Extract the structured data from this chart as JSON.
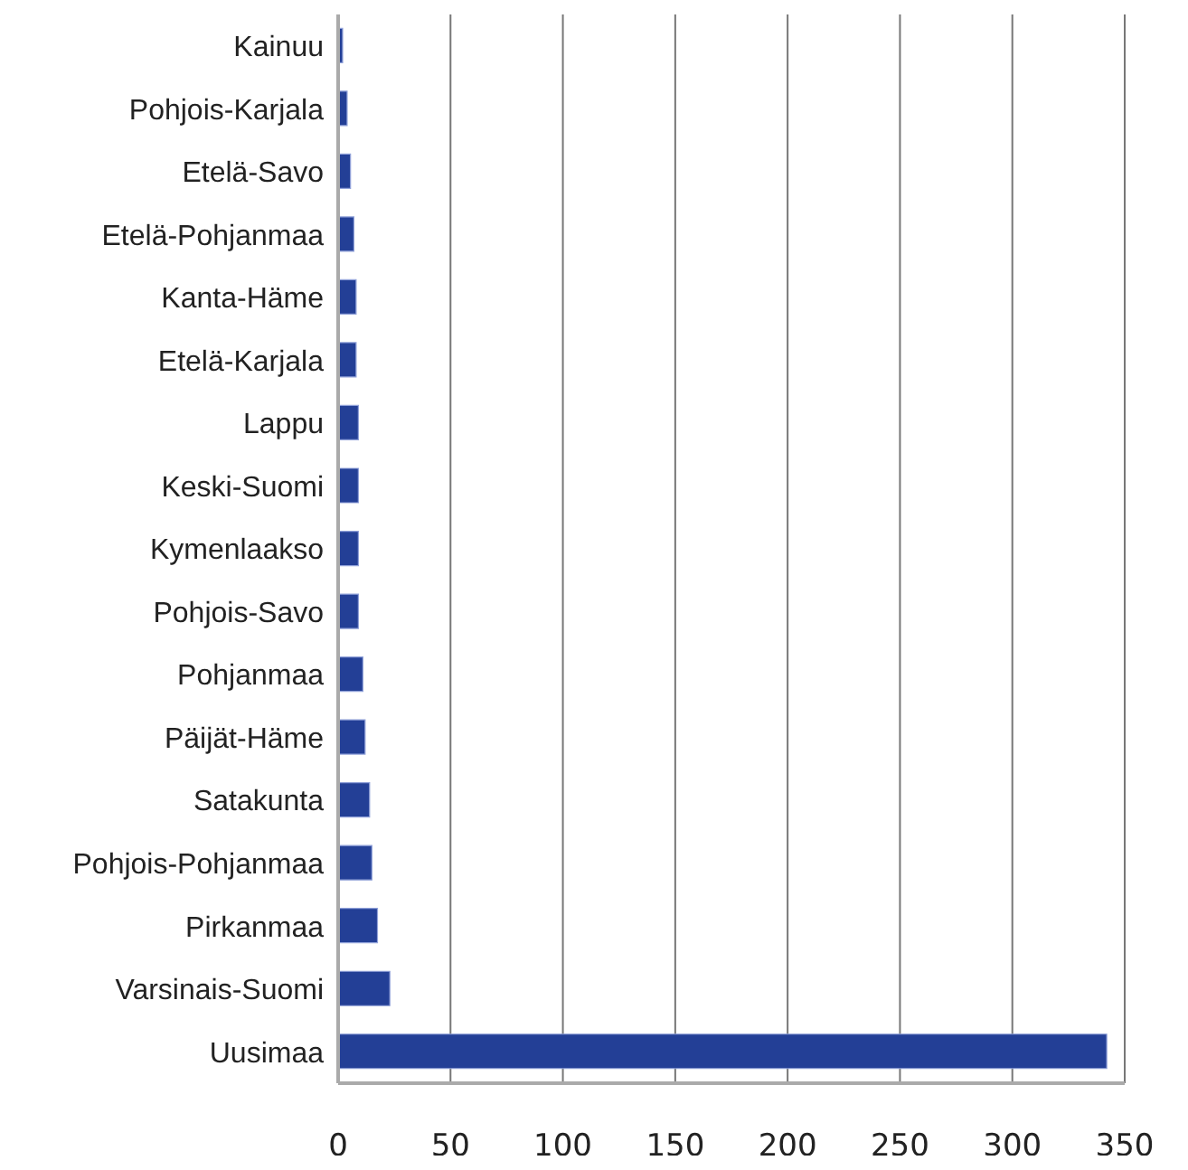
{
  "chart_data": {
    "type": "bar",
    "orientation": "horizontal",
    "categories": [
      "Kainuu",
      "Pohjois-Karjala",
      "Etelä-Savo",
      "Etelä-Pohjanmaa",
      "Kanta-Häme",
      "Etelä-Karjala",
      "Lappu",
      "Keski-Suomi",
      "Kymenlaakso",
      "Pohjois-Savo",
      "Pohjanmaa",
      "Päijät-Häme",
      "Satakunta",
      "Pohjois-Pohjanmaa",
      "Pirkanmaa",
      "Varsinais-Suomi",
      "Uusimaa"
    ],
    "values": [
      2,
      4,
      5.5,
      7,
      8,
      8,
      9,
      9,
      9,
      9,
      11,
      12,
      14,
      15,
      17.5,
      23,
      342
    ],
    "color": "#233f96",
    "xlim": [
      0,
      350
    ],
    "xticks": [
      0,
      50,
      100,
      150,
      200,
      250,
      300,
      350
    ],
    "grid": "x"
  }
}
